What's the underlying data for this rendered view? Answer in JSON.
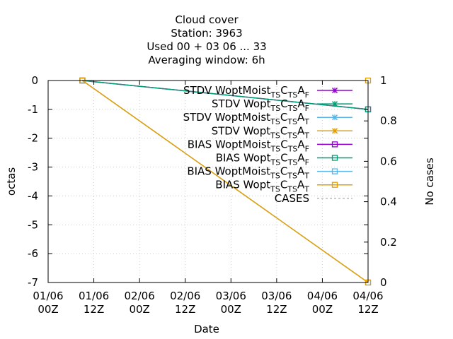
{
  "chart_data": {
    "type": "line",
    "title_lines": [
      "Cloud cover",
      "Station:     3963",
      "Used  00 + 03 06 ... 33",
      "Averaging window:  6h"
    ],
    "xlabel": "Date",
    "ylabel": "octas",
    "y2label": "No cases",
    "x_ticks": [
      {
        "date": "01/06",
        "hour": "00Z"
      },
      {
        "date": "01/06",
        "hour": "12Z"
      },
      {
        "date": "02/06",
        "hour": "00Z"
      },
      {
        "date": "02/06",
        "hour": "12Z"
      },
      {
        "date": "03/06",
        "hour": "00Z"
      },
      {
        "date": "03/06",
        "hour": "12Z"
      },
      {
        "date": "04/06",
        "hour": "00Z"
      },
      {
        "date": "04/06",
        "hour": "12Z"
      }
    ],
    "xlim_hours": [
      0,
      84
    ],
    "ylim": [
      -7,
      0
    ],
    "y_ticks": [
      0,
      -1,
      -2,
      -3,
      -4,
      -5,
      -6,
      -7
    ],
    "y2lim": [
      0,
      1
    ],
    "y2_ticks": [
      "0",
      "0.2",
      "0.4",
      "0.6",
      "0.8",
      "1"
    ],
    "grid": true,
    "legend_position": "top-right",
    "series": [
      {
        "name_main": "STDV WoptMoist",
        "subs": [
          [
            "TS",
            ""
          ],
          [
            "C",
            ""
          ],
          [
            "TS",
            ""
          ],
          [
            "A",
            "F"
          ]
        ],
        "color": "#9400d3",
        "marker": "x",
        "axis": "y1",
        "points": []
      },
      {
        "name_main": "STDV Wopt",
        "subs": [
          [
            "TS",
            ""
          ],
          [
            "C",
            ""
          ],
          [
            "TS",
            ""
          ],
          [
            "A",
            "F"
          ]
        ],
        "color": "#009e73",
        "marker": "x",
        "axis": "y1",
        "points": []
      },
      {
        "name_main": "STDV WoptMoist",
        "subs": [
          [
            "TS",
            ""
          ],
          [
            "C",
            ""
          ],
          [
            "TS",
            ""
          ],
          [
            "A",
            "T"
          ]
        ],
        "color": "#56b4e9",
        "marker": "x",
        "axis": "y1",
        "points": []
      },
      {
        "name_main": "STDV Wopt",
        "subs": [
          [
            "TS",
            ""
          ],
          [
            "C",
            ""
          ],
          [
            "TS",
            ""
          ],
          [
            "A",
            "T"
          ]
        ],
        "color": "#e69f00",
        "marker": "x",
        "axis": "y1",
        "points": []
      },
      {
        "name_main": "BIAS WoptMoist",
        "subs": [
          [
            "TS",
            ""
          ],
          [
            "C",
            ""
          ],
          [
            "TS",
            ""
          ],
          [
            "A",
            "F"
          ]
        ],
        "color": "#9400d3",
        "marker": "square",
        "axis": "y1",
        "points": [
          [
            9,
            0
          ],
          [
            84,
            -1
          ]
        ]
      },
      {
        "name_main": "BIAS Wopt",
        "subs": [
          [
            "TS",
            ""
          ],
          [
            "C",
            ""
          ],
          [
            "TS",
            ""
          ],
          [
            "A",
            "F"
          ]
        ],
        "color": "#009e73",
        "marker": "square",
        "axis": "y1",
        "points": [
          [
            9,
            0
          ],
          [
            84,
            -1
          ]
        ]
      },
      {
        "name_main": "BIAS WoptMoist",
        "subs": [
          [
            "TS",
            ""
          ],
          [
            "C",
            ""
          ],
          [
            "TS",
            ""
          ],
          [
            "A",
            "T"
          ]
        ],
        "color": "#56b4e9",
        "marker": "square",
        "axis": "y1",
        "points": [
          [
            9,
            0
          ],
          [
            84,
            -7
          ]
        ]
      },
      {
        "name_main": "BIAS Wopt",
        "subs": [
          [
            "TS",
            ""
          ],
          [
            "C",
            ""
          ],
          [
            "TS",
            ""
          ],
          [
            "A",
            "T"
          ]
        ],
        "color": "#e69f00",
        "marker": "square",
        "axis": "y1",
        "points": [
          [
            9,
            0
          ],
          [
            84,
            -7
          ]
        ]
      },
      {
        "name_main": "CASES",
        "subs": [],
        "color": "#a0a0a0",
        "marker": "none",
        "dash": true,
        "axis": "y2",
        "points": []
      }
    ],
    "corner_markers": [
      {
        "x_hour": 84,
        "y2": 1,
        "color": "#e69f00"
      }
    ]
  }
}
